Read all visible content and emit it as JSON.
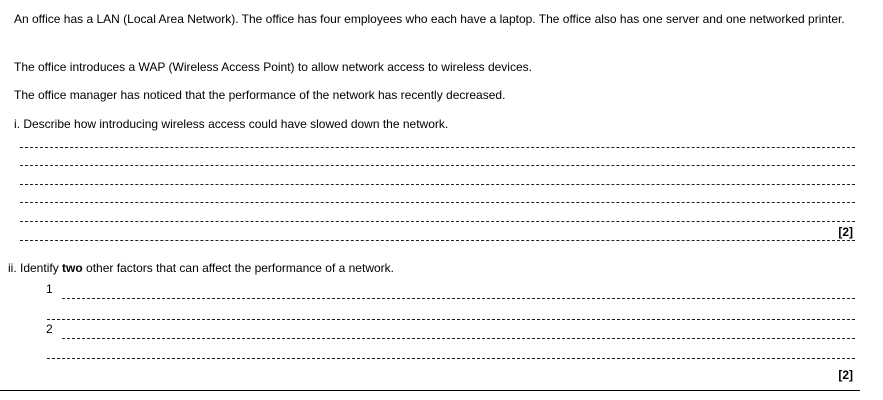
{
  "intro": {
    "p1": "An office has a LAN (Local Area Network). The office has four employees who each have a laptop. The office also has one server and one networked printer.",
    "p2": "The office introduces a WAP (Wireless Access Point) to allow network access to wireless devices.",
    "p3": "The office manager has noticed that the performance of the network has recently decreased."
  },
  "q1": {
    "text": "i. Describe how introducing wireless access could have slowed down the network.",
    "marks": "[2]"
  },
  "q2": {
    "prefix": "ii. Identify ",
    "bold": "two",
    "suffix": " other factors that can affect the performance of a network.",
    "item1": "1",
    "item2": "2",
    "marks": "[2]"
  }
}
